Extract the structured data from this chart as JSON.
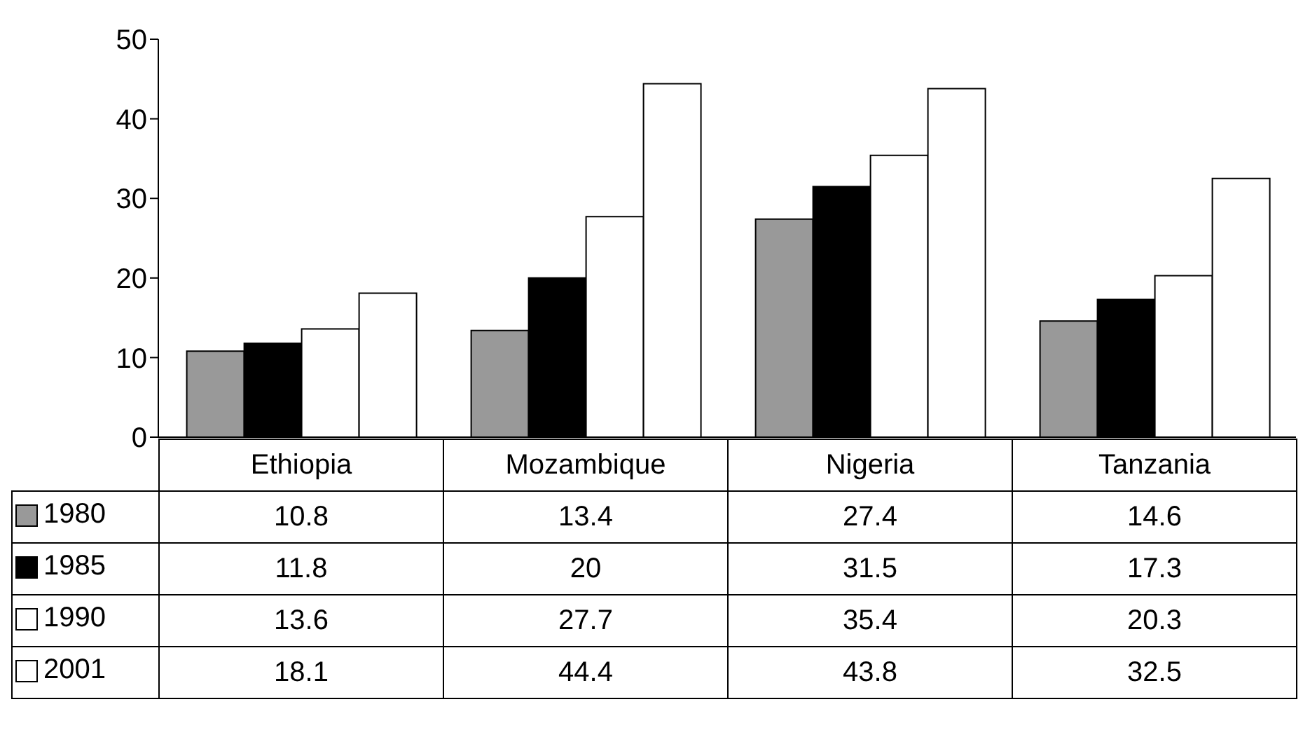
{
  "chart_data": {
    "type": "bar",
    "categories": [
      "Ethiopia",
      "Mozambique",
      "Nigeria",
      "Tanzania"
    ],
    "series": [
      {
        "name": "1980",
        "color": "#999999",
        "values": [
          10.8,
          13.4,
          27.4,
          14.6
        ]
      },
      {
        "name": "1985",
        "color": "#000000",
        "values": [
          11.8,
          20,
          31.5,
          17.3
        ]
      },
      {
        "name": "1990",
        "color": "#ffffff",
        "values": [
          13.6,
          27.7,
          35.4,
          20.3
        ]
      },
      {
        "name": "2001",
        "color": "#ffffff",
        "values": [
          18.1,
          44.4,
          43.8,
          32.5
        ]
      }
    ],
    "ylim": [
      0,
      50
    ],
    "yticks": [
      0,
      10,
      20,
      30,
      40,
      50
    ],
    "legend": "bottom left",
    "data_labels": true
  }
}
